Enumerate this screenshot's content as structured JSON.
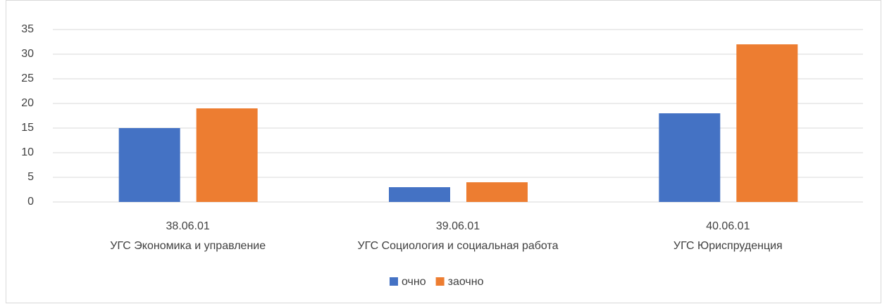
{
  "chart_data": {
    "type": "bar",
    "categories": [
      [
        "38.06.01",
        "УГС Экономика и управление"
      ],
      [
        "39.06.01",
        "УГС Социология и социальная работа"
      ],
      [
        "40.06.01",
        "УГС Юриспруденция"
      ]
    ],
    "series": [
      {
        "name": "очно",
        "color": "#4472c4",
        "values": [
          15,
          3,
          18
        ]
      },
      {
        "name": "заочно",
        "color": "#ed7d31",
        "values": [
          19,
          4,
          32
        ]
      }
    ],
    "ylim": [
      0,
      35
    ],
    "yticks": [
      0,
      5,
      10,
      15,
      20,
      25,
      30,
      35
    ],
    "grid": true,
    "legend": "bottom"
  }
}
